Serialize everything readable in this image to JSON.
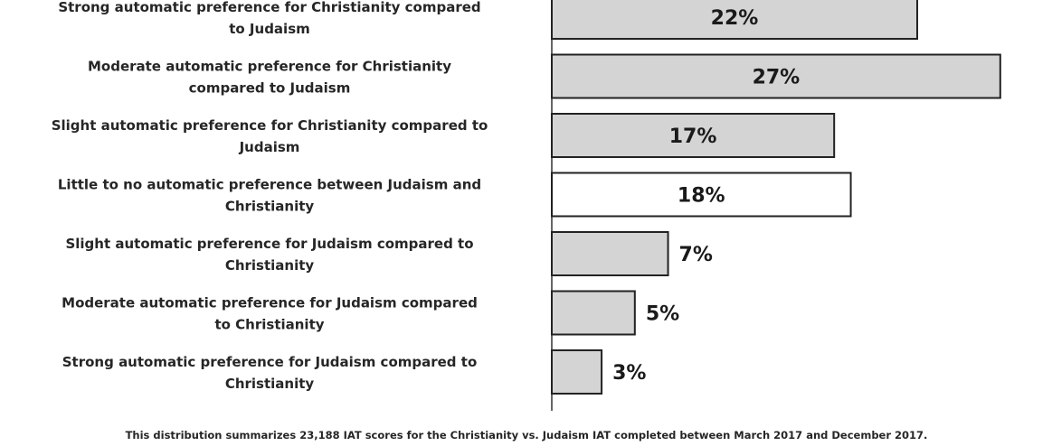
{
  "chart_data": {
    "type": "bar",
    "orientation": "horizontal",
    "categories": [
      [
        "Strong automatic preference for Christianity compared",
        "to Judaism"
      ],
      [
        "Moderate automatic preference for Christianity",
        "compared to Judaism"
      ],
      [
        "Slight automatic preference for Christianity compared to",
        "Judaism"
      ],
      [
        "Little to no automatic preference between Judaism and",
        "Christianity"
      ],
      [
        "Slight automatic preference for Judaism compared to",
        "Christianity"
      ],
      [
        "Moderate automatic preference for Judaism compared",
        "to Christianity"
      ],
      [
        "Strong automatic preference for Judaism compared to",
        "Christianity"
      ]
    ],
    "values": [
      22,
      27,
      17,
      18,
      7,
      5,
      3
    ],
    "value_labels": [
      "22%",
      "27%",
      "17%",
      "18%",
      "7%",
      "5%",
      "3%"
    ],
    "bar_colors": [
      "#d4d4d4",
      "#d4d4d4",
      "#d4d4d4",
      "#ffffff",
      "#d4d4d4",
      "#d4d4d4",
      "#d4d4d4"
    ],
    "xlim": [
      0,
      27.5
    ],
    "grid": false,
    "note": "This distribution summarizes 23,188 IAT scores for the Christianity vs. Judaism IAT completed between March 2017 and December 2017."
  }
}
